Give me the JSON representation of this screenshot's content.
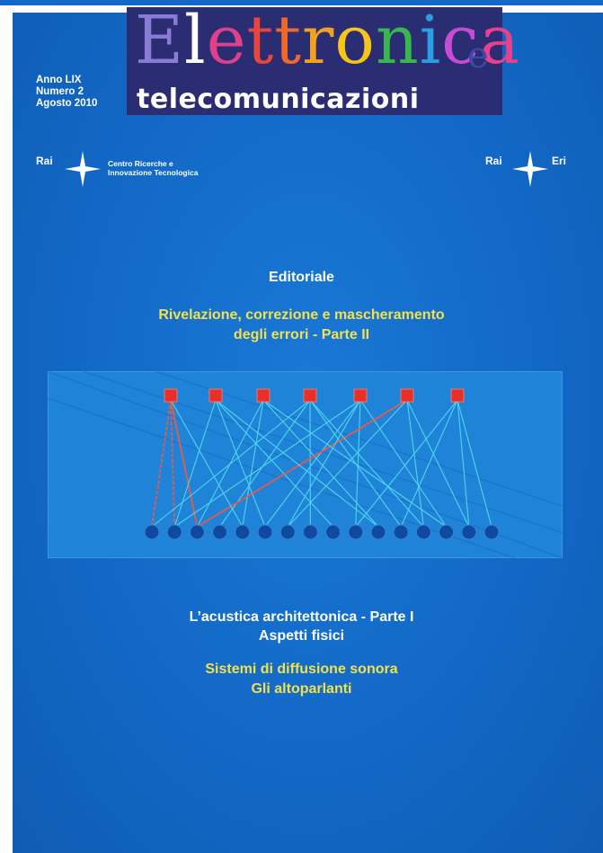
{
  "masthead": {
    "title_letters": [
      {
        "ch": "E",
        "color": "#8a7bd6"
      },
      {
        "ch": "l",
        "color": "#ffffff"
      },
      {
        "ch": "e",
        "color": "#e0408a"
      },
      {
        "ch": "t",
        "color": "#e8453c"
      },
      {
        "ch": "t",
        "color": "#ee6a2a"
      },
      {
        "ch": "r",
        "color": "#f3a21d"
      },
      {
        "ch": "o",
        "color": "#f5c518"
      },
      {
        "ch": "n",
        "color": "#38b84a"
      },
      {
        "ch": "i",
        "color": "#2a9de3"
      },
      {
        "ch": "c",
        "color": "#c84bd6"
      },
      {
        "ch": "a",
        "color": "#ea3f8c"
      }
    ],
    "title_suffix": "e",
    "subtitle": "telecomunicazioni"
  },
  "issue": {
    "year": "Anno LIX",
    "number": "Numero 2",
    "date": "Agosto 2010"
  },
  "logos": {
    "left_brand": "Rai",
    "left_caption_1": "Centro Ricerche e",
    "left_caption_2": "Innovazione Tecnologica",
    "right_brand": "Rai",
    "right_suffix": "Eri"
  },
  "sections": {
    "editorial_label": "Editoriale",
    "article1_line1": "Rivelazione, correzione e mascheramento",
    "article1_line2": "degli errori  - Parte II",
    "article2_line1": "L’acustica architettonica - Parte I",
    "article2_line2": "Aspetti fisici",
    "article3_line1": "Sistemi di diffusione sonora",
    "article3_line2": "Gli altoparlanti"
  },
  "colors": {
    "background": "#1269c8",
    "masthead": "#2b2d73",
    "accent_yellow": "#f2e14a",
    "check_node": "#e8302a",
    "variable_node": "#0d4aa0",
    "edge": "#4fd6ee",
    "edge_highlight": "#e85a4a"
  }
}
